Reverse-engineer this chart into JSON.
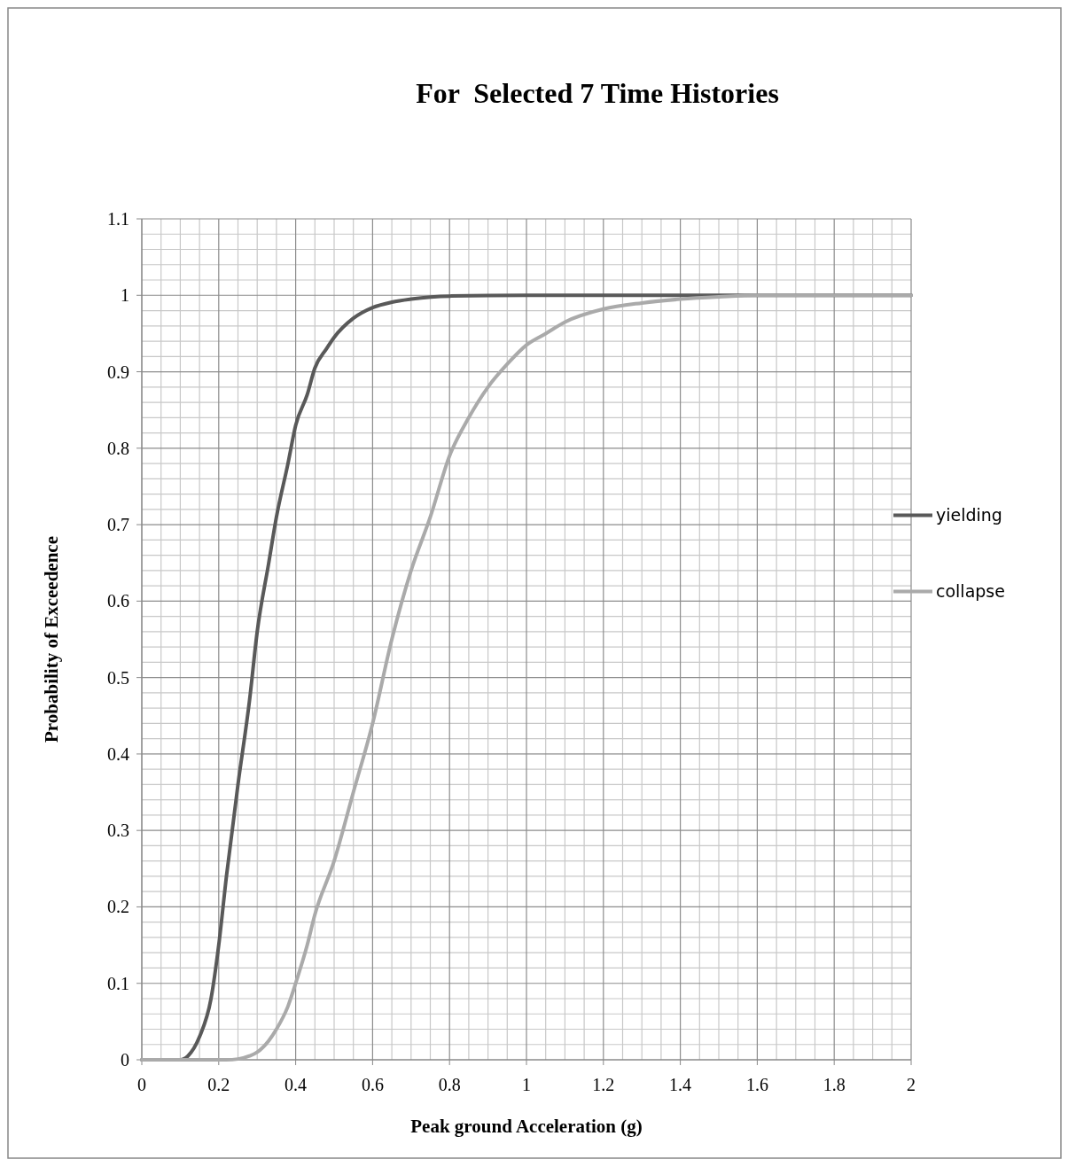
{
  "chart_data": {
    "type": "line",
    "title": "For  Selected 7 Time Histories",
    "xlabel": "Peak ground Acceleration (g)",
    "ylabel": "Probability of Exceedence",
    "xlim": [
      0,
      2
    ],
    "xticks": [
      0,
      0.2,
      0.4,
      0.6,
      0.8,
      1,
      1.2,
      1.4,
      1.6,
      1.8,
      2
    ],
    "ylim": [
      0,
      1.1
    ],
    "yticks": [
      0,
      0.1,
      0.2,
      0.3,
      0.4,
      0.5,
      0.6,
      0.7,
      0.8,
      0.9,
      1,
      1.1
    ],
    "grid": true,
    "legend": "right",
    "marker": "none",
    "line_style": "solid",
    "series": [
      {
        "name": "yielding",
        "color": "#595959",
        "x": [
          0,
          0.1,
          0.12,
          0.15,
          0.18,
          0.2,
          0.22,
          0.25,
          0.28,
          0.3,
          0.33,
          0.35,
          0.38,
          0.4,
          0.43,
          0.45,
          0.48,
          0.5,
          0.55,
          0.6,
          0.65,
          0.7,
          0.8,
          1,
          2
        ],
        "values": [
          0,
          0,
          0.005,
          0.03,
          0.08,
          0.15,
          0.24,
          0.36,
          0.47,
          0.56,
          0.65,
          0.71,
          0.78,
          0.83,
          0.87,
          0.905,
          0.93,
          0.945,
          0.97,
          0.984,
          0.991,
          0.995,
          0.999,
          1,
          1
        ]
      },
      {
        "name": "collapse",
        "color": "#aaaaaa",
        "x": [
          0,
          0.22,
          0.25,
          0.28,
          0.3,
          0.33,
          0.35,
          0.38,
          0.4,
          0.43,
          0.45,
          0.5,
          0.55,
          0.6,
          0.65,
          0.7,
          0.75,
          0.8,
          0.85,
          0.9,
          0.95,
          1,
          1.05,
          1.1,
          1.2,
          1.3,
          1.4,
          1.5,
          1.6,
          2
        ],
        "values": [
          0,
          0,
          0.001,
          0.005,
          0.01,
          0.025,
          0.04,
          0.07,
          0.1,
          0.15,
          0.19,
          0.26,
          0.35,
          0.44,
          0.55,
          0.64,
          0.71,
          0.79,
          0.84,
          0.88,
          0.91,
          0.935,
          0.95,
          0.965,
          0.982,
          0.99,
          0.995,
          0.998,
          1,
          1
        ]
      }
    ]
  }
}
